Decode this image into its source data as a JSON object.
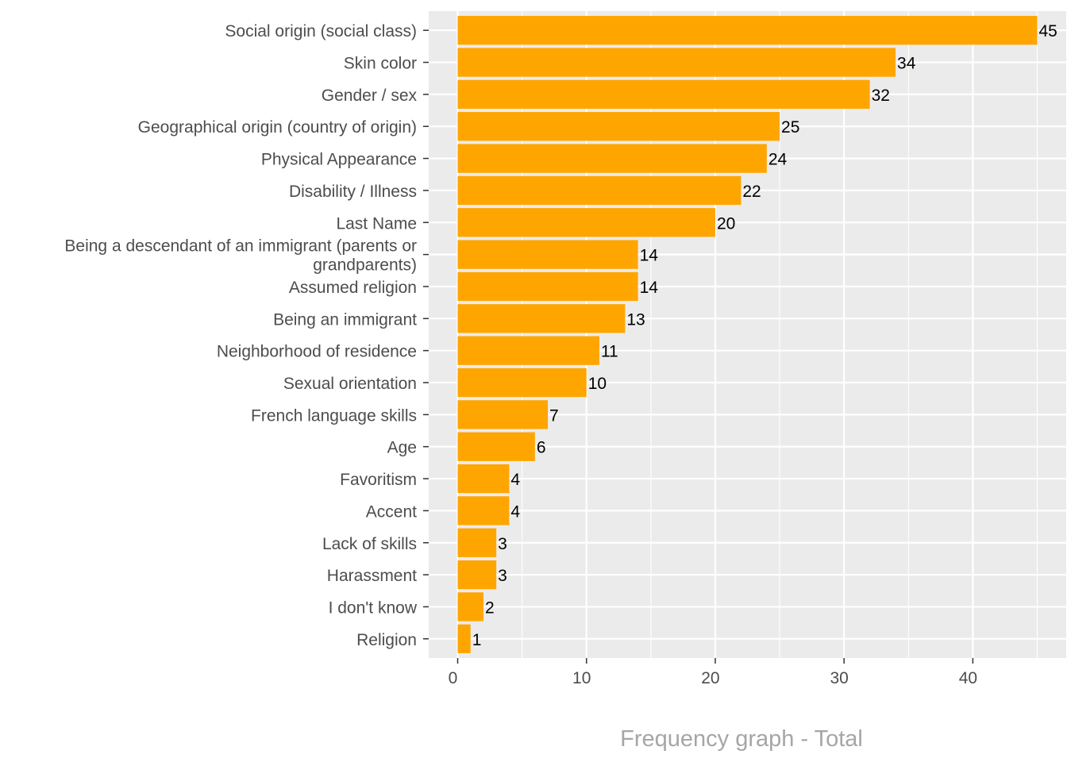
{
  "chart_data": {
    "type": "bar",
    "orientation": "horizontal",
    "title": "Frequency graph - Total",
    "title_position": "bottom",
    "xlabel": "",
    "ylabel": "",
    "categories": [
      "Social origin (social class)",
      "Skin color",
      "Gender / sex",
      "Geographical origin (country of origin)",
      "Physical Appearance",
      "Disability / Illness",
      "Last Name",
      "Being a descendant of an immigrant (parents or grandparents)",
      "Assumed religion",
      "Being an immigrant",
      "Neighborhood of residence",
      "Sexual orientation",
      "French language skills",
      "Age",
      "Favoritism",
      "Accent",
      "Lack of skills",
      "Harassment",
      "I don't know",
      "Religion"
    ],
    "category_lines": [
      [
        "Social origin (social class)"
      ],
      [
        "Skin color"
      ],
      [
        "Gender / sex"
      ],
      [
        "Geographical origin (country of origin)"
      ],
      [
        "Physical Appearance"
      ],
      [
        "Disability / Illness"
      ],
      [
        "Last Name"
      ],
      [
        "Being a descendant of an immigrant (parents or",
        "grandparents)"
      ],
      [
        "Assumed religion"
      ],
      [
        "Being an immigrant"
      ],
      [
        "Neighborhood of residence"
      ],
      [
        "Sexual orientation"
      ],
      [
        "French language skills"
      ],
      [
        "Age"
      ],
      [
        "Favoritism"
      ],
      [
        "Accent"
      ],
      [
        "Lack of skills"
      ],
      [
        "Harassment"
      ],
      [
        "I don't know"
      ],
      [
        "Religion"
      ]
    ],
    "values": [
      45,
      34,
      32,
      25,
      24,
      22,
      20,
      14,
      14,
      13,
      11,
      10,
      7,
      6,
      4,
      4,
      3,
      3,
      2,
      1
    ],
    "xlim": [
      -2.25,
      47.25
    ],
    "xticks": [
      0,
      10,
      20,
      30,
      40
    ],
    "xtick_labels": [
      "0",
      "10",
      "20",
      "30",
      "40"
    ],
    "grid": true,
    "legend": "none",
    "bar_color": "#FFA500",
    "panel_color": "#EBEBEB",
    "title_color": "#A6A6A6"
  }
}
